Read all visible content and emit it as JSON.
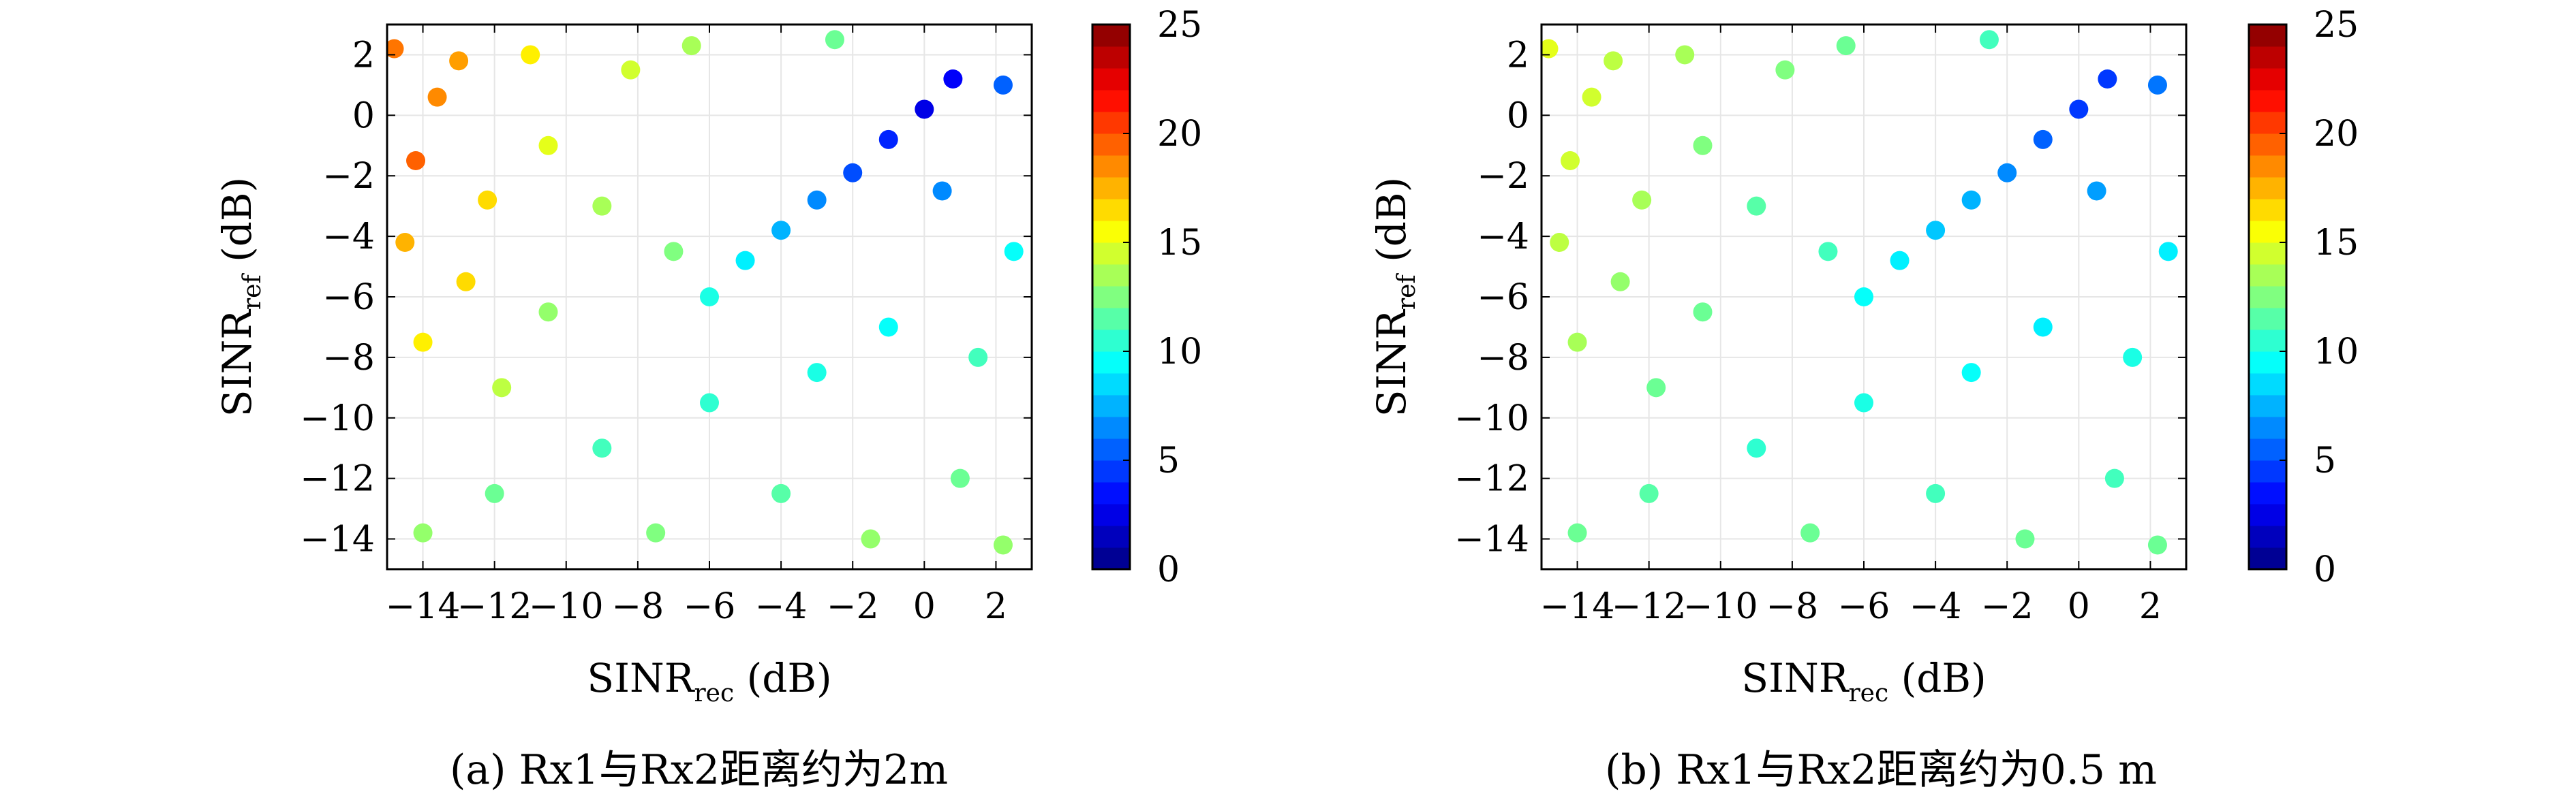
{
  "chart_data": [
    {
      "type": "scatter",
      "panel_label": "(a)",
      "caption": "(a) Rx1与Rx2距离约为2m",
      "xlabel": {
        "main": "SINR",
        "sub": "rec",
        "unit": "(dB)"
      },
      "ylabel": {
        "main": "SINR",
        "sub": "ref",
        "unit": "(dB)"
      },
      "xlim": [
        -15,
        3
      ],
      "ylim": [
        -15,
        3
      ],
      "xticks": [
        -14,
        -12,
        -10,
        -8,
        -6,
        -4,
        -2,
        0,
        2
      ],
      "yticks": [
        -14,
        -12,
        -10,
        -8,
        -6,
        -4,
        -2,
        0,
        2
      ],
      "grid": true,
      "color_field": "value",
      "colorbar": {
        "range": [
          0,
          25
        ],
        "ticks": [
          0,
          5,
          10,
          15,
          20,
          25
        ],
        "colormap": "jet"
      },
      "points": [
        {
          "x": -14.8,
          "y": 2.2,
          "value": 19
        },
        {
          "x": -14.2,
          "y": -1.5,
          "value": 19.5
        },
        {
          "x": -13.6,
          "y": 0.6,
          "value": 18.5
        },
        {
          "x": -14.5,
          "y": -4.2,
          "value": 17.5
        },
        {
          "x": -13.0,
          "y": 1.8,
          "value": 18
        },
        {
          "x": -12.2,
          "y": -2.8,
          "value": 16.5
        },
        {
          "x": -14.0,
          "y": -7.5,
          "value": 16
        },
        {
          "x": -12.8,
          "y": -5.5,
          "value": 16.5
        },
        {
          "x": -11.0,
          "y": 2.0,
          "value": 16
        },
        {
          "x": -10.5,
          "y": -1.0,
          "value": 15
        },
        {
          "x": -11.8,
          "y": -9.0,
          "value": 14
        },
        {
          "x": -9.0,
          "y": -3.0,
          "value": 13.5
        },
        {
          "x": -8.2,
          "y": 1.5,
          "value": 14.5
        },
        {
          "x": -6.5,
          "y": 2.3,
          "value": 13.5
        },
        {
          "x": -7.0,
          "y": -4.5,
          "value": 12.5
        },
        {
          "x": -6.0,
          "y": -6.0,
          "value": 10
        },
        {
          "x": -5.0,
          "y": -4.8,
          "value": 9
        },
        {
          "x": -4.0,
          "y": -3.8,
          "value": 7.5
        },
        {
          "x": -3.0,
          "y": -2.8,
          "value": 6.5
        },
        {
          "x": -2.0,
          "y": -1.9,
          "value": 5
        },
        {
          "x": -1.0,
          "y": -0.8,
          "value": 4
        },
        {
          "x": 0.0,
          "y": 0.2,
          "value": 2.5
        },
        {
          "x": 0.8,
          "y": 1.2,
          "value": 3
        },
        {
          "x": 0.5,
          "y": -2.5,
          "value": 6.5
        },
        {
          "x": 2.2,
          "y": 1.0,
          "value": 5.5
        },
        {
          "x": 2.5,
          "y": -4.5,
          "value": 9.5
        },
        {
          "x": 1.5,
          "y": -8.0,
          "value": 11
        },
        {
          "x": -1.0,
          "y": -7.0,
          "value": 9.5
        },
        {
          "x": -3.0,
          "y": -8.5,
          "value": 10
        },
        {
          "x": -6.0,
          "y": -9.5,
          "value": 10.5
        },
        {
          "x": -9.0,
          "y": -11.0,
          "value": 11
        },
        {
          "x": -12.0,
          "y": -12.5,
          "value": 12
        },
        {
          "x": -14.0,
          "y": -13.8,
          "value": 13
        },
        {
          "x": -4.0,
          "y": -12.5,
          "value": 11.5
        },
        {
          "x": -7.5,
          "y": -13.8,
          "value": 12.5
        },
        {
          "x": -1.5,
          "y": -14.0,
          "value": 13
        },
        {
          "x": 1.0,
          "y": -12.0,
          "value": 12
        },
        {
          "x": 2.2,
          "y": -14.2,
          "value": 13
        },
        {
          "x": -10.5,
          "y": -6.5,
          "value": 13
        },
        {
          "x": -2.5,
          "y": 2.5,
          "value": 12
        }
      ]
    },
    {
      "type": "scatter",
      "panel_label": "(b)",
      "caption": "(b) Rx1与Rx2距离约为0.5 m",
      "xlabel": {
        "main": "SINR",
        "sub": "rec",
        "unit": "(dB)"
      },
      "ylabel": {
        "main": "SINR",
        "sub": "ref",
        "unit": "(dB)"
      },
      "xlim": [
        -15,
        3
      ],
      "ylim": [
        -15,
        3
      ],
      "xticks": [
        -14,
        -12,
        -10,
        -8,
        -6,
        -4,
        -2,
        0,
        2
      ],
      "yticks": [
        -14,
        -12,
        -10,
        -8,
        -6,
        -4,
        -2,
        0,
        2
      ],
      "grid": true,
      "color_field": "value",
      "colorbar": {
        "range": [
          0,
          25
        ],
        "ticks": [
          0,
          5,
          10,
          15,
          20,
          25
        ],
        "colormap": "jet"
      },
      "points": [
        {
          "x": -14.8,
          "y": 2.2,
          "value": 15
        },
        {
          "x": -14.2,
          "y": -1.5,
          "value": 14.5
        },
        {
          "x": -13.6,
          "y": 0.6,
          "value": 14.5
        },
        {
          "x": -14.5,
          "y": -4.2,
          "value": 14
        },
        {
          "x": -13.0,
          "y": 1.8,
          "value": 14
        },
        {
          "x": -12.2,
          "y": -2.8,
          "value": 13.5
        },
        {
          "x": -14.0,
          "y": -7.5,
          "value": 13.5
        },
        {
          "x": -12.8,
          "y": -5.5,
          "value": 13
        },
        {
          "x": -11.0,
          "y": 2.0,
          "value": 13.5
        },
        {
          "x": -10.5,
          "y": -1.0,
          "value": 12.5
        },
        {
          "x": -11.8,
          "y": -9.0,
          "value": 12
        },
        {
          "x": -9.0,
          "y": -3.0,
          "value": 11.5
        },
        {
          "x": -8.2,
          "y": 1.5,
          "value": 12.5
        },
        {
          "x": -6.5,
          "y": 2.3,
          "value": 12
        },
        {
          "x": -7.0,
          "y": -4.5,
          "value": 11
        },
        {
          "x": -6.0,
          "y": -6.0,
          "value": 9.5
        },
        {
          "x": -5.0,
          "y": -4.8,
          "value": 9
        },
        {
          "x": -4.0,
          "y": -3.8,
          "value": 8
        },
        {
          "x": -3.0,
          "y": -2.8,
          "value": 7.5
        },
        {
          "x": -2.0,
          "y": -1.9,
          "value": 6.5
        },
        {
          "x": -1.0,
          "y": -0.8,
          "value": 5.5
        },
        {
          "x": 0.0,
          "y": 0.2,
          "value": 4.5
        },
        {
          "x": 0.8,
          "y": 1.2,
          "value": 4.5
        },
        {
          "x": 0.5,
          "y": -2.5,
          "value": 7
        },
        {
          "x": 2.2,
          "y": 1.0,
          "value": 6
        },
        {
          "x": 2.5,
          "y": -4.5,
          "value": 9
        },
        {
          "x": 1.5,
          "y": -8.0,
          "value": 10
        },
        {
          "x": -1.0,
          "y": -7.0,
          "value": 9
        },
        {
          "x": -3.0,
          "y": -8.5,
          "value": 9.5
        },
        {
          "x": -6.0,
          "y": -9.5,
          "value": 10
        },
        {
          "x": -9.0,
          "y": -11.0,
          "value": 10.5
        },
        {
          "x": -12.0,
          "y": -12.5,
          "value": 11.5
        },
        {
          "x": -14.0,
          "y": -13.8,
          "value": 12
        },
        {
          "x": -4.0,
          "y": -12.5,
          "value": 11
        },
        {
          "x": -7.5,
          "y": -13.8,
          "value": 12
        },
        {
          "x": -1.5,
          "y": -14.0,
          "value": 12
        },
        {
          "x": 1.0,
          "y": -12.0,
          "value": 11
        },
        {
          "x": 2.2,
          "y": -14.2,
          "value": 12
        },
        {
          "x": -10.5,
          "y": -6.5,
          "value": 12
        },
        {
          "x": -2.5,
          "y": 2.5,
          "value": 11
        }
      ]
    }
  ]
}
